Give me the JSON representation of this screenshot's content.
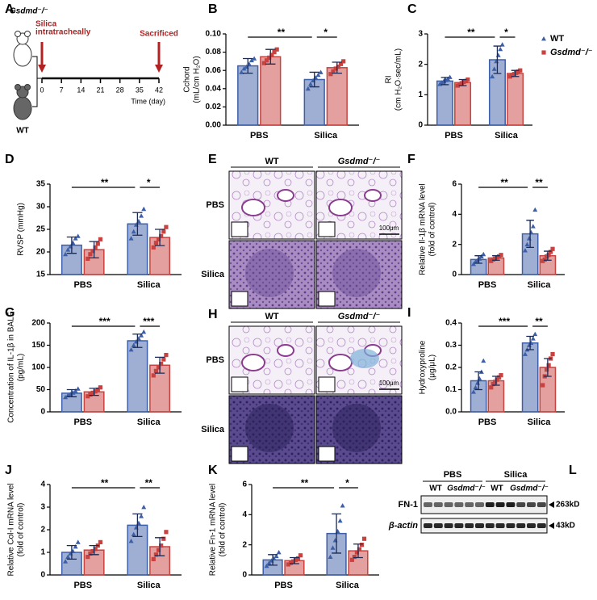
{
  "panel_a": {
    "label": "A",
    "mouse_top": "Gsdmd⁻/⁻",
    "mouse_bottom": "WT",
    "start_event": [
      "Silica",
      "intratracheally"
    ],
    "end_event": "Sacrificed",
    "days": [
      0,
      7,
      14,
      21,
      28,
      35,
      42
    ],
    "axis_label": "Time (day)"
  },
  "chart_data": [
    {
      "type": "bar",
      "panel": "B",
      "ylabel": [
        "Cchord",
        "(mL/cm H₂O)"
      ],
      "categories": [
        "PBS",
        "Silica"
      ],
      "ylim": [
        0,
        0.1
      ],
      "yticks": [
        {
          "value": 0,
          "label": "0.00"
        },
        0.02,
        0.04,
        0.06,
        0.08,
        {
          "value": 0.1,
          "label": "0.10"
        }
      ],
      "series": [
        {
          "color": "#3d5fa8",
          "marker": "triangle",
          "values": [
            0.065,
            0.05
          ],
          "errors": [
            0.008,
            0.008
          ],
          "points": [
            [
              0.058,
              0.062,
              0.064,
              0.067,
              0.071,
              0.073
            ],
            [
              0.04,
              0.045,
              0.049,
              0.052,
              0.055,
              0.058
            ]
          ]
        },
        {
          "color": "#c8423f",
          "marker": "square",
          "values": [
            0.075,
            0.063
          ],
          "errors": [
            0.008,
            0.006
          ],
          "points": [
            [
              0.068,
              0.071,
              0.074,
              0.077,
              0.08,
              0.083
            ],
            [
              0.056,
              0.059,
              0.062,
              0.064,
              0.067,
              0.07
            ]
          ]
        }
      ],
      "annotations": [
        "**",
        "*"
      ]
    },
    {
      "type": "bar",
      "panel": "C",
      "ylabel": [
        "RI",
        "(cm H₂O·sec/mL)"
      ],
      "categories": [
        "PBS",
        "Silica"
      ],
      "ylim": [
        0,
        3
      ],
      "yticks": [
        0,
        1,
        2,
        3
      ],
      "legend": "right",
      "series": [
        {
          "name": "WT",
          "color": "#3d5fa8",
          "marker": "triangle",
          "values": [
            1.45,
            2.15
          ],
          "errors": [
            0.12,
            0.45
          ],
          "points": [
            [
              1.35,
              1.4,
              1.45,
              1.48,
              1.52,
              1.58
            ],
            [
              1.6,
              1.85,
              2.1,
              2.3,
              2.5,
              2.65
            ]
          ]
        },
        {
          "name": "Gsdmd⁻/⁻",
          "color": "#c8423f",
          "marker": "square",
          "values": [
            1.4,
            1.7
          ],
          "errors": [
            0.1,
            0.1
          ],
          "points": [
            [
              1.3,
              1.35,
              1.38,
              1.42,
              1.45,
              1.5
            ],
            [
              1.6,
              1.65,
              1.68,
              1.72,
              1.76,
              1.8
            ]
          ]
        }
      ],
      "annotations": [
        "**",
        "*"
      ]
    },
    {
      "type": "bar",
      "panel": "D",
      "ylabel": [
        "RVSP (mmHg)"
      ],
      "categories": [
        "PBS",
        "Silica"
      ],
      "ylim": [
        15,
        35
      ],
      "yticks": [
        15,
        20,
        25,
        30,
        35
      ],
      "series": [
        {
          "color": "#3d5fa8",
          "marker": "triangle",
          "values": [
            21.5,
            26.2
          ],
          "errors": [
            1.8,
            2.5
          ],
          "points": [
            [
              19.5,
              20.5,
              21.2,
              22,
              23,
              23.5
            ],
            [
              23,
              24.5,
              26,
              26.8,
              28,
              29.5
            ]
          ]
        },
        {
          "color": "#c8423f",
          "marker": "square",
          "values": [
            20.5,
            23.2
          ],
          "errors": [
            1.8,
            1.8
          ],
          "points": [
            [
              18.5,
              19.5,
              20.2,
              21,
              21.8,
              22.8
            ],
            [
              21,
              22,
              22.8,
              23.5,
              24.5,
              25.5
            ]
          ]
        }
      ],
      "annotations": [
        "**",
        "*"
      ]
    },
    {
      "type": "bar",
      "panel": "F",
      "ylabel": [
        "Relative Il-1β mRNA level",
        "(fold of control)"
      ],
      "categories": [
        "PBS",
        "Silica"
      ],
      "ylim": [
        0,
        6
      ],
      "yticks": [
        0,
        2,
        4,
        6
      ],
      "series": [
        {
          "color": "#3d5fa8",
          "marker": "triangle",
          "values": [
            1.0,
            2.7
          ],
          "errors": [
            0.25,
            0.9
          ],
          "points": [
            [
              0.7,
              0.85,
              0.95,
              1.05,
              1.2,
              1.35
            ],
            [
              1.6,
              2.0,
              2.4,
              2.8,
              3.2,
              4.3
            ]
          ]
        },
        {
          "color": "#c8423f",
          "marker": "square",
          "values": [
            1.1,
            1.25
          ],
          "errors": [
            0.15,
            0.3
          ],
          "points": [
            [
              0.9,
              1.0,
              1.05,
              1.15,
              1.2,
              1.3
            ],
            [
              0.9,
              1.0,
              1.2,
              1.3,
              1.5,
              1.7
            ]
          ]
        }
      ],
      "annotations": [
        "**",
        "**"
      ]
    },
    {
      "type": "bar",
      "panel": "G",
      "ylabel": [
        "Concentration of IL-1β in BALF",
        "(pg/mL)"
      ],
      "categories": [
        "PBS",
        "Silica"
      ],
      "ylim": [
        0,
        200
      ],
      "yticks": [
        0,
        50,
        100,
        150,
        200
      ],
      "series": [
        {
          "color": "#3d5fa8",
          "marker": "triangle",
          "values": [
            42,
            160
          ],
          "errors": [
            8,
            15
          ],
          "points": [
            [
              33,
              37,
              40,
              43,
              47,
              52
            ],
            [
              140,
              150,
              158,
              165,
              172,
              180
            ]
          ]
        },
        {
          "color": "#c8423f",
          "marker": "square",
          "values": [
            45,
            105
          ],
          "errors": [
            8,
            18
          ],
          "points": [
            [
              35,
              39,
              43,
              46,
              50,
              55
            ],
            [
              82,
              92,
              100,
              108,
              118,
              128
            ]
          ]
        }
      ],
      "annotations": [
        "***",
        "***"
      ]
    },
    {
      "type": "bar",
      "panel": "I",
      "ylabel": [
        "Hydroxyproline",
        "(μg/μL)"
      ],
      "categories": [
        "PBS",
        "Silica"
      ],
      "ylim": [
        0,
        0.4
      ],
      "yticks": [
        {
          "value": 0,
          "label": "0.0"
        },
        0.1,
        0.2,
        0.3,
        0.4
      ],
      "series": [
        {
          "color": "#3d5fa8",
          "marker": "triangle",
          "values": [
            0.14,
            0.31
          ],
          "errors": [
            0.04,
            0.03
          ],
          "points": [
            [
              0.09,
              0.11,
              0.13,
              0.15,
              0.18,
              0.23
            ],
            [
              0.26,
              0.28,
              0.3,
              0.31,
              0.33,
              0.35
            ]
          ]
        },
        {
          "color": "#c8423f",
          "marker": "square",
          "values": [
            0.14,
            0.2
          ],
          "errors": [
            0.02,
            0.04
          ],
          "points": [
            [
              0.11,
              0.125,
              0.135,
              0.145,
              0.155,
              0.165
            ],
            [
              0.12,
              0.16,
              0.19,
              0.21,
              0.24,
              0.26
            ]
          ]
        }
      ],
      "annotations": [
        "***",
        "**"
      ]
    },
    {
      "type": "bar",
      "panel": "J",
      "ylabel": [
        "Relative Col-I mRNA level",
        "(fold of control)"
      ],
      "categories": [
        "PBS",
        "Silica"
      ],
      "ylim": [
        0,
        4
      ],
      "yticks": [
        0,
        1,
        2,
        3,
        4
      ],
      "series": [
        {
          "color": "#3d5fa8",
          "marker": "triangle",
          "values": [
            1.0,
            2.2
          ],
          "errors": [
            0.3,
            0.5
          ],
          "points": [
            [
              0.6,
              0.8,
              0.95,
              1.05,
              1.25,
              1.45
            ],
            [
              1.5,
              1.8,
              2.1,
              2.3,
              2.6,
              3.0
            ]
          ]
        },
        {
          "color": "#c8423f",
          "marker": "square",
          "values": [
            1.1,
            1.25
          ],
          "errors": [
            0.2,
            0.4
          ],
          "points": [
            [
              0.8,
              0.95,
              1.05,
              1.15,
              1.3,
              1.45
            ],
            [
              0.7,
              0.9,
              1.1,
              1.3,
              1.6,
              1.9
            ]
          ]
        }
      ],
      "annotations": [
        "**",
        "**"
      ]
    },
    {
      "type": "bar",
      "panel": "K",
      "ylabel": [
        "Relative Fn-1 mRNA level",
        "(fold of control)"
      ],
      "categories": [
        "PBS",
        "Silica"
      ],
      "ylim": [
        0,
        6
      ],
      "yticks": [
        0,
        2,
        4,
        6
      ],
      "series": [
        {
          "color": "#3d5fa8",
          "marker": "triangle",
          "values": [
            1.0,
            2.75
          ],
          "errors": [
            0.35,
            1.3
          ],
          "points": [
            [
              0.6,
              0.8,
              0.95,
              1.1,
              1.25,
              1.5
            ],
            [
              1.2,
              1.8,
              2.3,
              2.9,
              3.6,
              4.6
            ]
          ]
        },
        {
          "color": "#c8423f",
          "marker": "square",
          "values": [
            0.95,
            1.6
          ],
          "errors": [
            0.2,
            0.45
          ],
          "points": [
            [
              0.7,
              0.8,
              0.9,
              1.0,
              1.1,
              1.3
            ],
            [
              1.0,
              1.2,
              1.5,
              1.7,
              2.0,
              2.4
            ]
          ]
        }
      ],
      "annotations": [
        "**",
        "*"
      ]
    }
  ],
  "panel_e": {
    "label": "E",
    "columns": [
      "WT",
      "Gsdmd⁻/⁻"
    ],
    "rows": [
      "PBS",
      "Silica"
    ],
    "scale_bar": "100μm"
  },
  "panel_h": {
    "label": "H",
    "columns": [
      "WT",
      "Gsdmd⁻/⁻"
    ],
    "rows": [
      "PBS",
      "Silica"
    ],
    "scale_bar": "100μm"
  },
  "panel_l": {
    "label": "L",
    "groups": [
      "PBS",
      "Silica"
    ],
    "lanes": [
      "WT",
      "Gsdmd⁻/⁻",
      "WT",
      "Gsdmd⁻/⁻"
    ],
    "proteins": [
      "FN-1",
      "β-actin"
    ],
    "sizes": [
      "263kD",
      "43kD"
    ]
  }
}
